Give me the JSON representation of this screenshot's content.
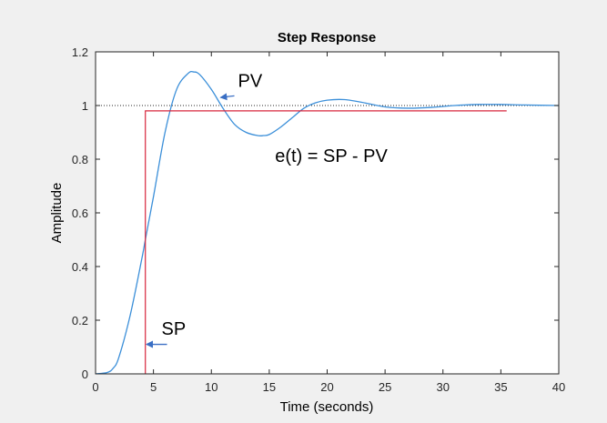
{
  "chart_data": {
    "type": "line",
    "title": "Step Response",
    "xlabel": "Time (seconds)",
    "ylabel": "Amplitude",
    "xlim": [
      0,
      40
    ],
    "ylim": [
      0,
      1.2
    ],
    "xticks": [
      "0",
      "5",
      "10",
      "15",
      "20",
      "25",
      "30",
      "35",
      "40"
    ],
    "yticks": [
      "0",
      "0.2",
      "0.4",
      "0.6",
      "0.8",
      "1",
      "1.2"
    ],
    "grid": false,
    "reference_line": {
      "y": 1.0,
      "style": "dotted"
    },
    "series": [
      {
        "name": "PV",
        "color": "#3b8fd9",
        "x": [
          0,
          1,
          1.5,
          2,
          3,
          4,
          4.3,
          5,
          6,
          7,
          8,
          8.5,
          9,
          10,
          11,
          12,
          13,
          14,
          14.5,
          15,
          16,
          17,
          18,
          19,
          20,
          21.5,
          23,
          25,
          27,
          29,
          31,
          33,
          35,
          37,
          40
        ],
        "y": [
          0,
          0.005,
          0.02,
          0.06,
          0.22,
          0.43,
          0.5,
          0.66,
          0.9,
          1.06,
          1.12,
          1.125,
          1.115,
          1.06,
          0.99,
          0.93,
          0.9,
          0.888,
          0.888,
          0.892,
          0.92,
          0.955,
          0.99,
          1.01,
          1.02,
          1.022,
          1.012,
          0.995,
          0.99,
          0.993,
          1.0,
          1.004,
          1.004,
          1.002,
          1.0
        ]
      },
      {
        "name": "SP",
        "color": "#d7263d",
        "x": [
          4.3,
          4.3,
          35.5
        ],
        "y": [
          0,
          0.98,
          0.98
        ]
      }
    ],
    "annotations": [
      {
        "text": "PV",
        "x": 12.3,
        "y": 1.07,
        "arrow_to": [
          10.8,
          1.03
        ]
      },
      {
        "text": "SP",
        "x": 5.7,
        "y": 0.145,
        "arrow_to": [
          4.4,
          0.11
        ]
      },
      {
        "text": "e(t) = SP - PV",
        "x": 15.5,
        "y": 0.79
      }
    ]
  }
}
